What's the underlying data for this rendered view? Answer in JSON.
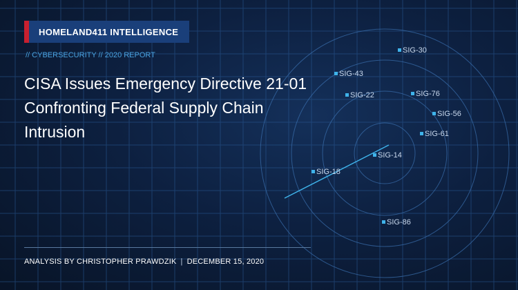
{
  "brand": {
    "label": "HOMELAND411 INTELLIGENCE",
    "accent_color": "#c8202f",
    "bar_color": "#1a3f7a"
  },
  "kicker": "// CYBERSECURITY // 2020 REPORT",
  "headline": "CISA Issues Emergency Directive 21-01 Confronting Federal Supply Chain Intrusion",
  "byline": {
    "author": "ANALYSIS BY CHRISTOPHER PRAWDZIK",
    "separator": "|",
    "date": "DECEMBER 15, 2020"
  },
  "signals": [
    {
      "label": "SIG-30"
    },
    {
      "label": "SIG-43"
    },
    {
      "label": "SIG-22"
    },
    {
      "label": "SIG-76"
    },
    {
      "label": "SIG-56"
    },
    {
      "label": "SIG-61"
    },
    {
      "label": "SIG-14"
    },
    {
      "label": "SIG-18"
    },
    {
      "label": "SIG-86"
    }
  ],
  "colors": {
    "signal": "#3fb3ea",
    "grid": "#2a5a96",
    "text": "#ffffff"
  }
}
